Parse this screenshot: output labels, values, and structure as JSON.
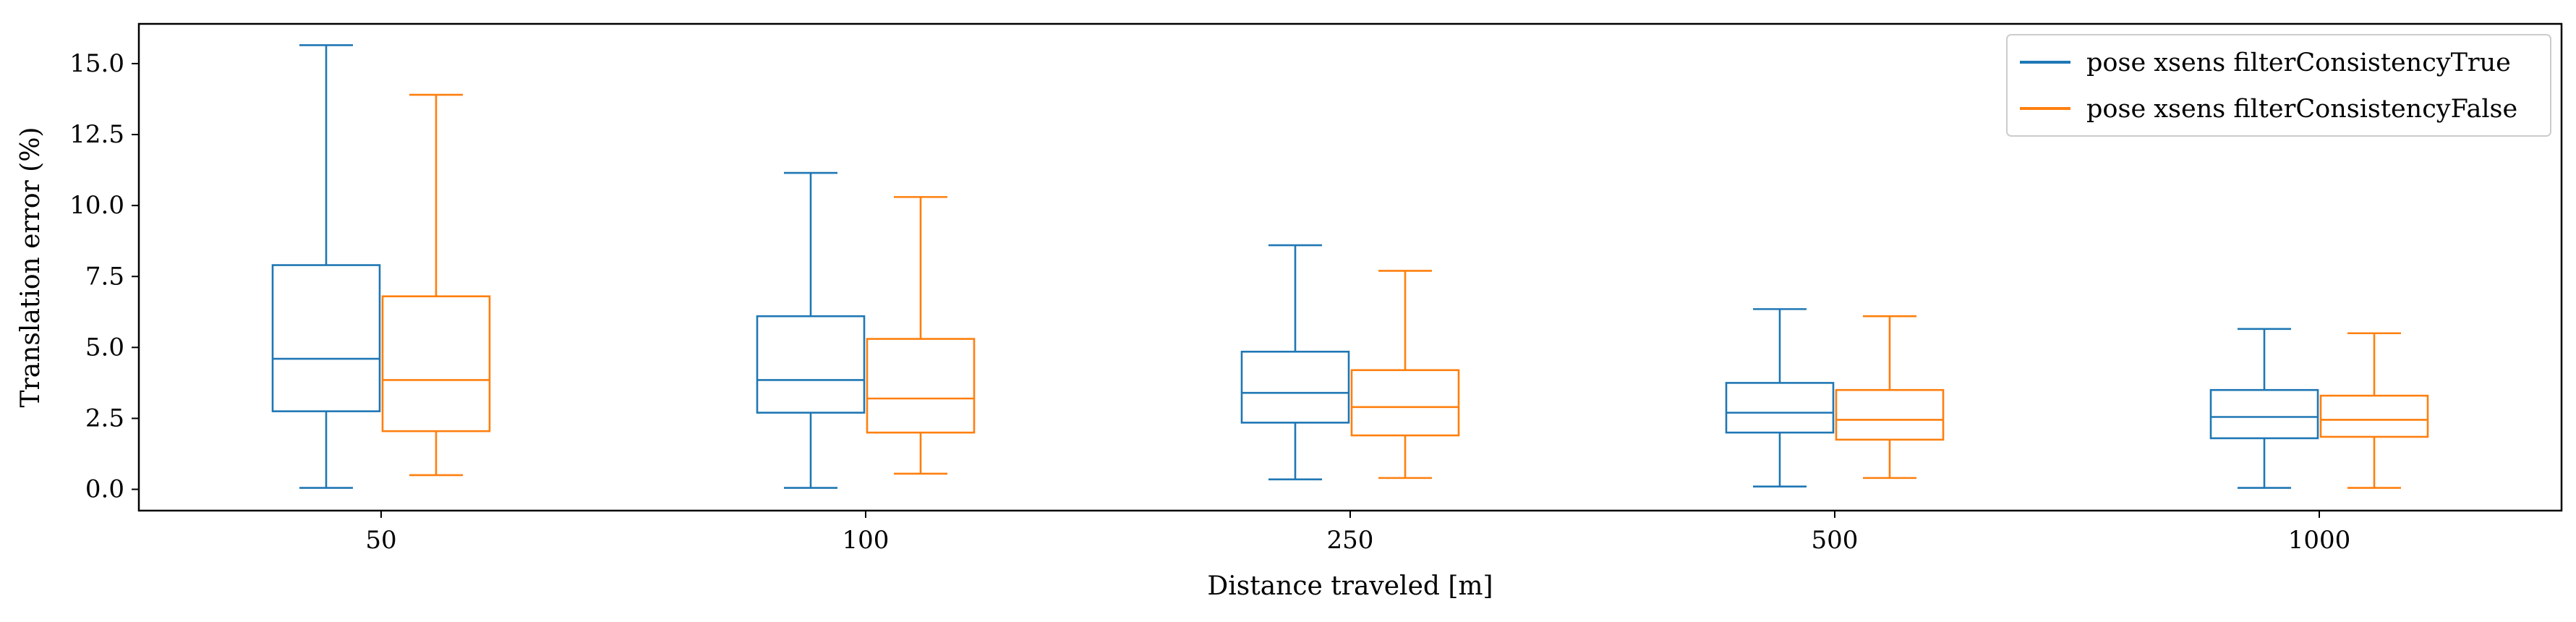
{
  "chart_data": {
    "type": "box",
    "title": "",
    "xlabel": "Distance traveled [m]",
    "ylabel": "Translation error (%)",
    "categories": [
      "50",
      "100",
      "250",
      "500",
      "1000"
    ],
    "ylim": [
      -0.75,
      16.4
    ],
    "yticks": [
      0.0,
      2.5,
      5.0,
      7.5,
      10.0,
      12.5,
      15.0
    ],
    "ytick_labels": [
      "0.0",
      "2.5",
      "5.0",
      "7.5",
      "10.0",
      "12.5",
      "15.0"
    ],
    "grid": false,
    "legend_position": "top-right",
    "series": [
      {
        "name": "pose xsens filterConsistencyTrue",
        "color": "#1f77b4",
        "boxes": [
          {
            "whislo": 0.05,
            "q1": 2.75,
            "med": 4.6,
            "q3": 7.9,
            "whishi": 15.65
          },
          {
            "whislo": 0.05,
            "q1": 2.7,
            "med": 3.85,
            "q3": 6.1,
            "whishi": 11.15
          },
          {
            "whislo": 0.35,
            "q1": 2.35,
            "med": 3.4,
            "q3": 4.85,
            "whishi": 8.6
          },
          {
            "whislo": 0.1,
            "q1": 2.0,
            "med": 2.7,
            "q3": 3.75,
            "whishi": 6.35
          },
          {
            "whislo": 0.05,
            "q1": 1.8,
            "med": 2.55,
            "q3": 3.5,
            "whishi": 5.65
          }
        ]
      },
      {
        "name": "pose xsens filterConsistencyFalse",
        "color": "#ff7f0e",
        "boxes": [
          {
            "whislo": 0.5,
            "q1": 2.05,
            "med": 3.85,
            "q3": 6.8,
            "whishi": 13.9
          },
          {
            "whislo": 0.55,
            "q1": 2.0,
            "med": 3.2,
            "q3": 5.3,
            "whishi": 10.3
          },
          {
            "whislo": 0.4,
            "q1": 1.9,
            "med": 2.9,
            "q3": 4.2,
            "whishi": 7.7
          },
          {
            "whislo": 0.4,
            "q1": 1.75,
            "med": 2.45,
            "q3": 3.5,
            "whishi": 6.1
          },
          {
            "whislo": 0.05,
            "q1": 1.85,
            "med": 2.45,
            "q3": 3.3,
            "whishi": 5.5
          }
        ]
      }
    ]
  }
}
